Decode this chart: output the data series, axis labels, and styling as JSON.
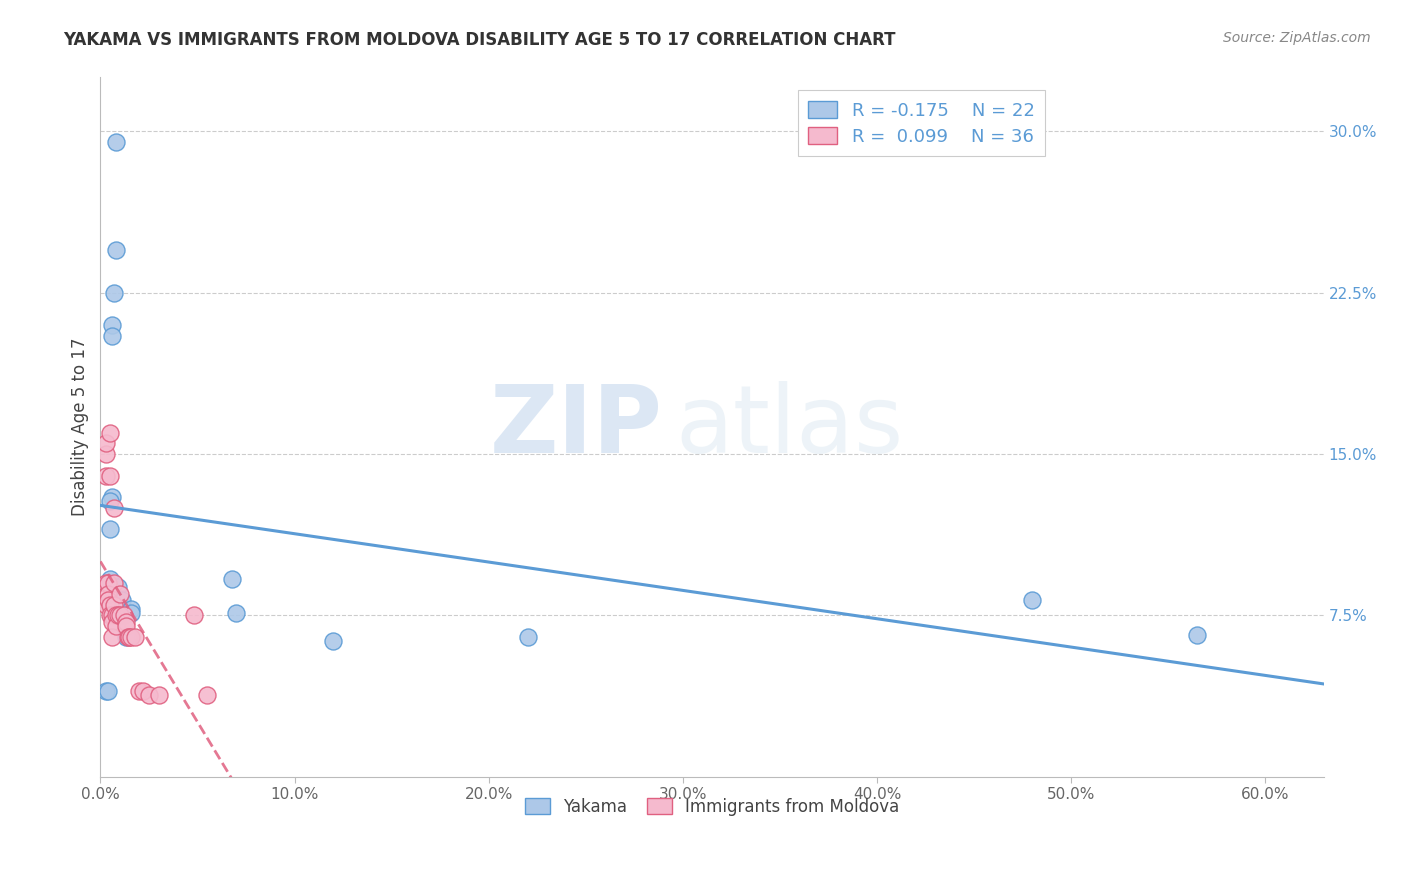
{
  "title": "YAKAMA VS IMMIGRANTS FROM MOLDOVA DISABILITY AGE 5 TO 17 CORRELATION CHART",
  "source": "Source: ZipAtlas.com",
  "ylabel_label": "Disability Age 5 to 17",
  "xlim": [
    0.0,
    0.63
  ],
  "ylim": [
    0.0,
    0.325
  ],
  "ylabel_vals_right": [
    0.075,
    0.15,
    0.225,
    0.3
  ],
  "ylabel_ticks_right": [
    "7.5%",
    "15.0%",
    "22.5%",
    "30.0%"
  ],
  "xlabel_vals": [
    0.0,
    0.1,
    0.2,
    0.3,
    0.4,
    0.5,
    0.6
  ],
  "xlabel_ticks": [
    "0.0%",
    "10.0%",
    "20.0%",
    "30.0%",
    "40.0%",
    "50.0%",
    "60.0%"
  ],
  "series1_color": "#adc8e8",
  "series2_color": "#f5bace",
  "line1_color": "#5b9bd5",
  "line2_color": "#e06080",
  "yakama_x": [
    0.008,
    0.008,
    0.007,
    0.006,
    0.006,
    0.006,
    0.005,
    0.005,
    0.005,
    0.009,
    0.011,
    0.016,
    0.016,
    0.013,
    0.068,
    0.07,
    0.12,
    0.22,
    0.48,
    0.565,
    0.003,
    0.004
  ],
  "yakama_y": [
    0.295,
    0.245,
    0.225,
    0.21,
    0.205,
    0.13,
    0.128,
    0.115,
    0.092,
    0.088,
    0.082,
    0.078,
    0.076,
    0.065,
    0.092,
    0.076,
    0.063,
    0.065,
    0.082,
    0.066,
    0.04,
    0.04
  ],
  "moldova_x": [
    0.003,
    0.003,
    0.003,
    0.003,
    0.003,
    0.004,
    0.004,
    0.004,
    0.005,
    0.005,
    0.005,
    0.005,
    0.006,
    0.006,
    0.006,
    0.007,
    0.007,
    0.007,
    0.008,
    0.008,
    0.009,
    0.01,
    0.01,
    0.012,
    0.013,
    0.013,
    0.014,
    0.015,
    0.016,
    0.018,
    0.02,
    0.022,
    0.025,
    0.03,
    0.048,
    0.055
  ],
  "moldova_y": [
    0.15,
    0.155,
    0.14,
    0.09,
    0.08,
    0.09,
    0.085,
    0.082,
    0.16,
    0.14,
    0.08,
    0.075,
    0.075,
    0.072,
    0.065,
    0.125,
    0.09,
    0.08,
    0.075,
    0.07,
    0.075,
    0.085,
    0.075,
    0.075,
    0.072,
    0.07,
    0.065,
    0.065,
    0.065,
    0.065,
    0.04,
    0.04,
    0.038,
    0.038,
    0.075,
    0.038
  ],
  "background_color": "#ffffff",
  "grid_color": "#cccccc",
  "watermark_zip": "ZIP",
  "watermark_atlas": "atlas"
}
